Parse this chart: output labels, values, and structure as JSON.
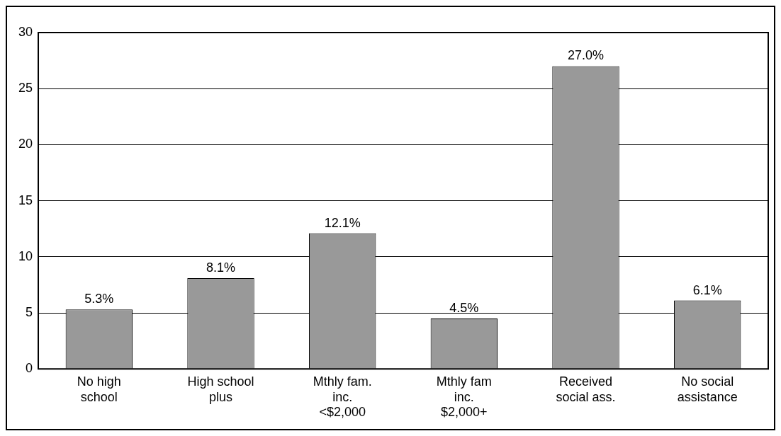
{
  "chart_data": {
    "type": "bar",
    "categories": [
      "No high school",
      "High school plus",
      "Mthly fam. inc. <$2,000",
      "Mthly fam inc. $2,000+",
      "Received social ass.",
      "No social assistance"
    ],
    "values": [
      5.3,
      8.1,
      12.1,
      4.5,
      27.0,
      6.1
    ],
    "value_labels": [
      "5.3%",
      "8.1%",
      "12.1%",
      "4.5%",
      "27.0%",
      "6.1%"
    ],
    "color": "#999999",
    "ylim": [
      0,
      30
    ],
    "yticks": [
      0,
      5,
      10,
      15,
      20,
      25,
      30
    ],
    "grid": "y",
    "legend": false
  }
}
